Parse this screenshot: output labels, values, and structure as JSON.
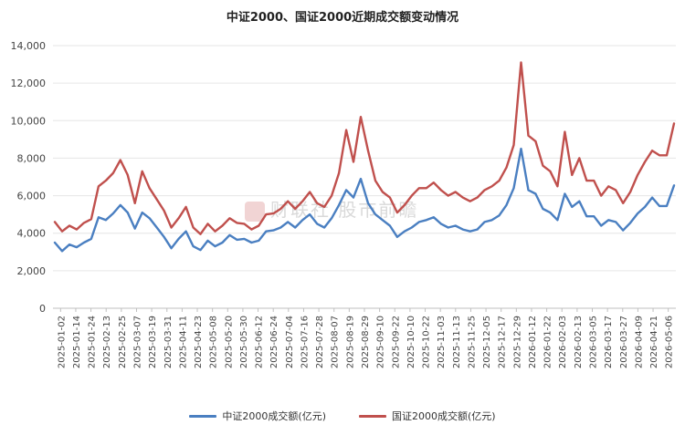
{
  "chart_data": {
    "type": "line",
    "title": "中证2000、国证2000近期成交额变动情况",
    "ylim": [
      0,
      14000
    ],
    "yticks": [
      "0",
      "2,000",
      "4,000",
      "6,000",
      "8,000",
      "10,000",
      "12,000",
      "14,000"
    ],
    "x_labels": [
      "2025-01-02",
      "2025-01-14",
      "2025-01-24",
      "2025-02-13",
      "2025-02-25",
      "2025-03-07",
      "2025-03-19",
      "2025-03-31",
      "2025-04-11",
      "2025-04-23",
      "2025-05-08",
      "2025-05-20",
      "2025-05-30",
      "2025-06-12",
      "2025-06-24",
      "2025-07-04",
      "2025-07-16",
      "2025-07-28",
      "2025-08-07",
      "2025-08-19",
      "2025-08-29",
      "2025-09-10",
      "2025-09-22",
      "2025-10-10",
      "2025-10-22",
      "2025-11-03",
      "2025-11-13",
      "2025-11-25",
      "2025-12-05",
      "2025-12-17",
      "2025-12-29",
      "2026-01-12",
      "2026-01-22",
      "2026-02-03",
      "2026-02-13",
      "2026-03-05",
      "2026-03-17",
      "2026-03-27",
      "2026-04-09",
      "2026-04-21",
      "2026-05-06"
    ],
    "grid": "horizontal",
    "legend": "bottom",
    "series": [
      {
        "name": "中证2000成交额(亿元)",
        "color": "#4a7fc1",
        "values": [
          3500,
          3050,
          3400,
          3250,
          3500,
          3700,
          4850,
          4700,
          5050,
          5500,
          5100,
          4250,
          5100,
          4800,
          4300,
          3800,
          3200,
          3700,
          4100,
          3300,
          3100,
          3600,
          3300,
          3500,
          3900,
          3650,
          3700,
          3500,
          3600,
          4100,
          4150,
          4300,
          4600,
          4300,
          4700,
          5000,
          4500,
          4300,
          4800,
          5500,
          6300,
          5900,
          6900,
          5600,
          5000,
          4700,
          4400,
          3800,
          4100,
          4300,
          4600,
          4700,
          4850,
          4500,
          4300,
          4400,
          4200,
          4100,
          4200,
          4600,
          4700,
          4950,
          5500,
          6400,
          8500,
          6300,
          6100,
          5300,
          5100,
          4700,
          6100,
          5400,
          5700,
          4900,
          4900,
          4400,
          4700,
          4600,
          4150,
          4550,
          5050,
          5400,
          5900,
          5450,
          5450,
          6550
        ]
      },
      {
        "name": "国证2000成交额(亿元)",
        "color": "#c0504d",
        "values": [
          4600,
          4100,
          4400,
          4200,
          4550,
          4750,
          6500,
          6800,
          7200,
          7900,
          7100,
          5600,
          7300,
          6400,
          5800,
          5200,
          4300,
          4800,
          5400,
          4300,
          3950,
          4500,
          4100,
          4400,
          4800,
          4550,
          4500,
          4200,
          4400,
          5000,
          5050,
          5300,
          5700,
          5300,
          5700,
          6200,
          5600,
          5400,
          6000,
          7200,
          9500,
          7800,
          10200,
          8400,
          6800,
          6200,
          5900,
          5100,
          5500,
          6000,
          6400,
          6400,
          6700,
          6300,
          6000,
          6200,
          5900,
          5700,
          5900,
          6300,
          6500,
          6800,
          7500,
          8700,
          13100,
          9200,
          8900,
          7600,
          7300,
          6500,
          9400,
          7100,
          8000,
          6800,
          6800,
          6000,
          6500,
          6300,
          5600,
          6200,
          7100,
          7800,
          8400,
          8150,
          8150,
          9850
        ]
      }
    ]
  },
  "watermark": "财联社 股市前瞻"
}
